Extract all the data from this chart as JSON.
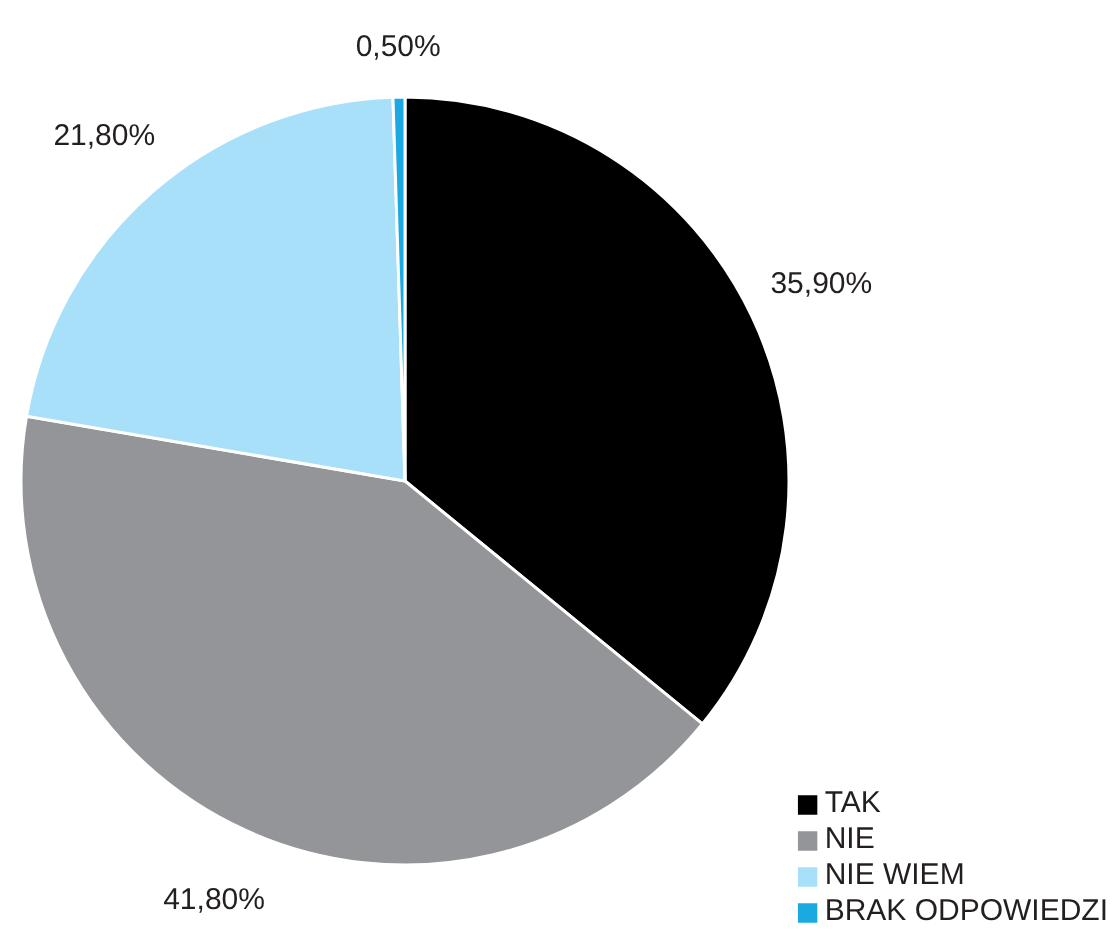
{
  "chart_data": {
    "type": "pie",
    "categories": [
      "TAK",
      "NIE",
      "NIE WIEM",
      "BRAK ODPOWIEDZI"
    ],
    "values": [
      35.9,
      41.8,
      21.8,
      0.5
    ],
    "colors": [
      "#000000",
      "#939598",
      "#a8e0fa",
      "#1aa9e0"
    ],
    "value_labels": [
      "35,90%",
      "41,80%",
      "21,80%",
      "0,50%"
    ],
    "legend": "bottom right"
  }
}
